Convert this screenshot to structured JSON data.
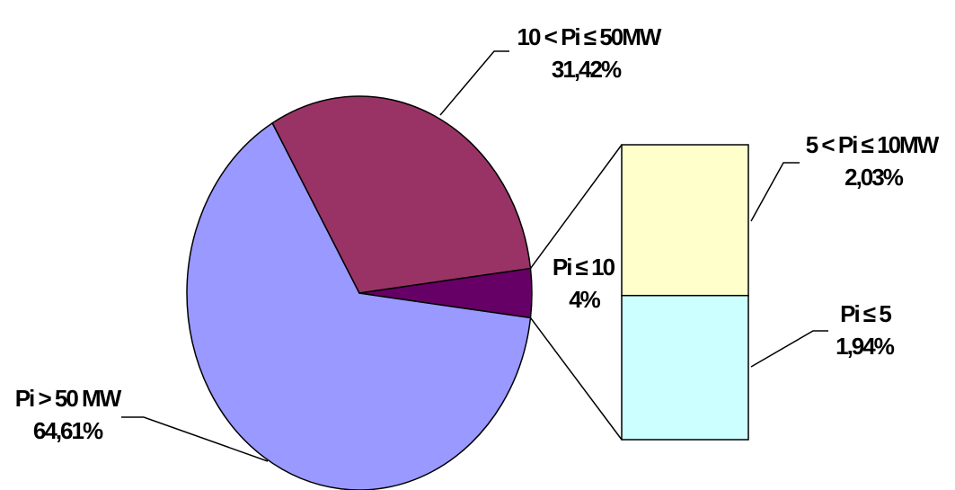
{
  "chart_data": {
    "type": "pie",
    "title": "",
    "slices": [
      {
        "key": "medium",
        "label": "10 < Pi ≤ 50MW",
        "value_text": "31,42%",
        "value": 31.42,
        "color": "#993366"
      },
      {
        "key": "small_total",
        "label": "Pi ≤ 10",
        "value_text": "4%",
        "value": 4.0,
        "color": "#660066"
      },
      {
        "key": "large",
        "label": "Pi > 50 MW",
        "value_text": "64,61%",
        "value": 64.61,
        "color": "#9999FF"
      }
    ],
    "breakdown": {
      "of": "Pi ≤ 10",
      "type": "stacked-bar",
      "parts": [
        {
          "key": "b5_10",
          "label": "5 < Pi ≤ 10MW",
          "value_text": "2,03%",
          "value": 2.03,
          "color": "#FFFFCC"
        },
        {
          "key": "b0_5",
          "label": "Pi ≤ 5",
          "value_text": "1,94%",
          "value": 1.94,
          "color": "#CCFFFF"
        }
      ]
    },
    "legend": "none",
    "grid": false
  }
}
